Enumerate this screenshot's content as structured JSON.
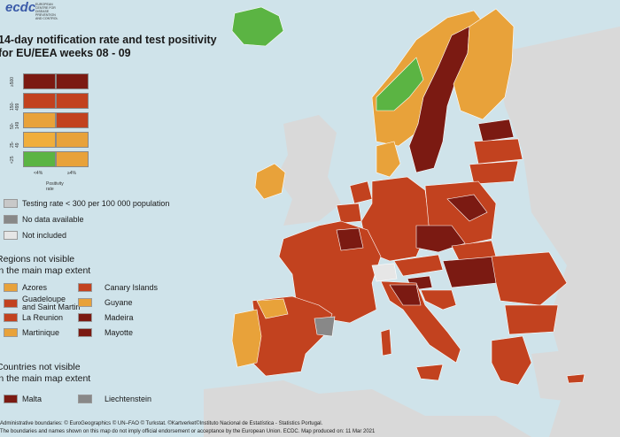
{
  "header": {
    "logo": "ecdc",
    "logo_sub": "EUROPEAN CENTRE FOR DISEASE PREVENTION AND CONTROL",
    "title_line1": "14-day notification rate and test positivity",
    "title_line2": "for EU/EEA weeks 08 - 09"
  },
  "legend_grid": {
    "row_labels": [
      "≥500",
      "150-499",
      "50-149",
      "25-49",
      "<25"
    ],
    "col_labels": [
      "<4%",
      "≥4%"
    ],
    "axis_label": "Positivity rate",
    "colors": [
      [
        "#7b1a12",
        "#7b1a12"
      ],
      [
        "#c2421f",
        "#c2421f"
      ],
      [
        "#e8a23a",
        "#c2421f"
      ],
      [
        "#f0ae3c",
        "#e8a23a"
      ],
      [
        "#5bb443",
        "#e8a23a"
      ]
    ]
  },
  "legend_extra": [
    {
      "label": "Testing rate < 300 per 100 000 population",
      "color": "#c8c8c8"
    },
    {
      "label": "No data available",
      "color": "#888888"
    },
    {
      "label": "Not included",
      "color": "#e6e6e6"
    }
  ],
  "regions_section": {
    "title_line1": "Regions not visible",
    "title_line2": "in the main map extent",
    "items": [
      {
        "label": "Azores",
        "color": "#e8a23a"
      },
      {
        "label": "Guadeloupe\nand Saint Martin",
        "color": "#c2421f"
      },
      {
        "label": "La Reunion",
        "color": "#c2421f"
      },
      {
        "label": "Martinique",
        "color": "#e8a23a"
      },
      {
        "label": "Canary Islands",
        "color": "#c2421f"
      },
      {
        "label": "Guyane",
        "color": "#e8a23a"
      },
      {
        "label": "Madeira",
        "color": "#7b1a12"
      },
      {
        "label": "Mayotte",
        "color": "#7b1a12"
      }
    ]
  },
  "countries_section": {
    "title_line1": "Countries not visible",
    "title_line2": "in the main map extent",
    "items": [
      {
        "label": "Malta",
        "color": "#7b1a12"
      },
      {
        "label": "Liechtenstein",
        "color": "#888888"
      }
    ]
  },
  "footer": {
    "line1": "Administrative boundaries: © EuroGeographics © UN–FAO © Turkstat. ©Kartverket©Instituto Nacional de Estatística - Statistics Portugal.",
    "line2": "The boundaries and names shown on this map do not imply official endorsement or acceptance by the European Union. ECDC. Map produced on: 11 Mar 2021"
  },
  "colors": {
    "sea": "#cfe3ea",
    "non_eu_land": "#d9d9d9",
    "dark_red": "#7b1a12",
    "red": "#c2421f",
    "orange": "#e8a23a",
    "green": "#5bb443",
    "grey": "#888888"
  }
}
